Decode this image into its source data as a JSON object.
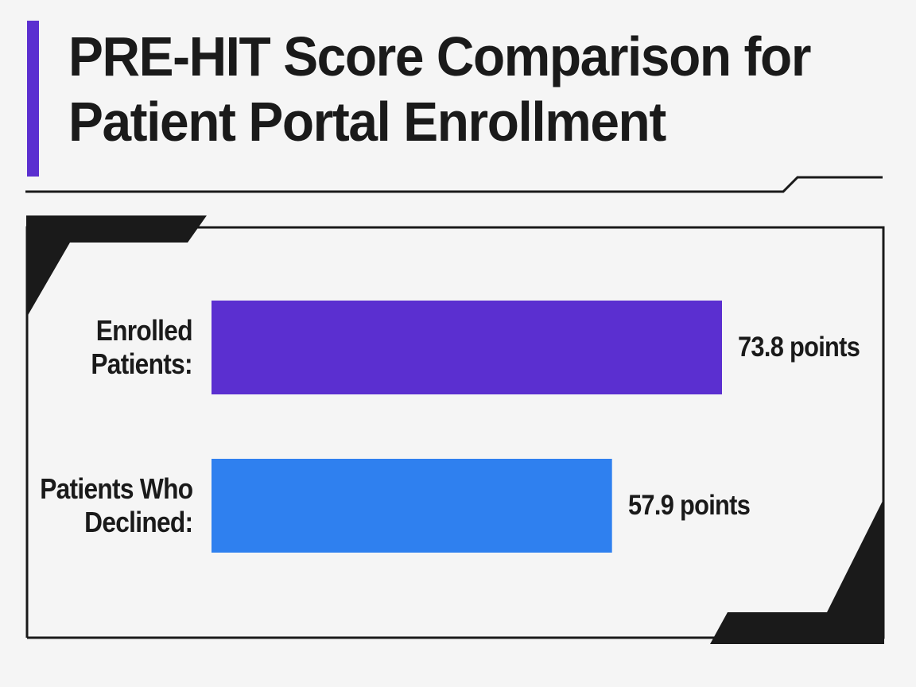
{
  "title_lines": [
    "PRE-HIT Score Comparison for",
    "Patient Portal Enrollment"
  ],
  "colors": {
    "accent": "#5b2fd0",
    "enrolled_bar": "#5b2fd0",
    "declined_bar": "#2f80ef",
    "frame": "#1a1a1a",
    "background": "#f5f5f5"
  },
  "chart_data": {
    "type": "bar",
    "orientation": "horizontal",
    "title": "PRE-HIT Score Comparison for Patient Portal Enrollment",
    "categories": [
      "Enrolled Patients:",
      "Patients Who Declined:"
    ],
    "category_lines": [
      [
        "Enrolled",
        "Patients:"
      ],
      [
        "Patients Who",
        "Declined:"
      ]
    ],
    "values": [
      73.8,
      57.9
    ],
    "value_labels": [
      "73.8 points",
      "57.9 points"
    ],
    "unit": "points",
    "xlim": [
      0,
      73.8
    ],
    "grid": false,
    "legend": "none"
  }
}
